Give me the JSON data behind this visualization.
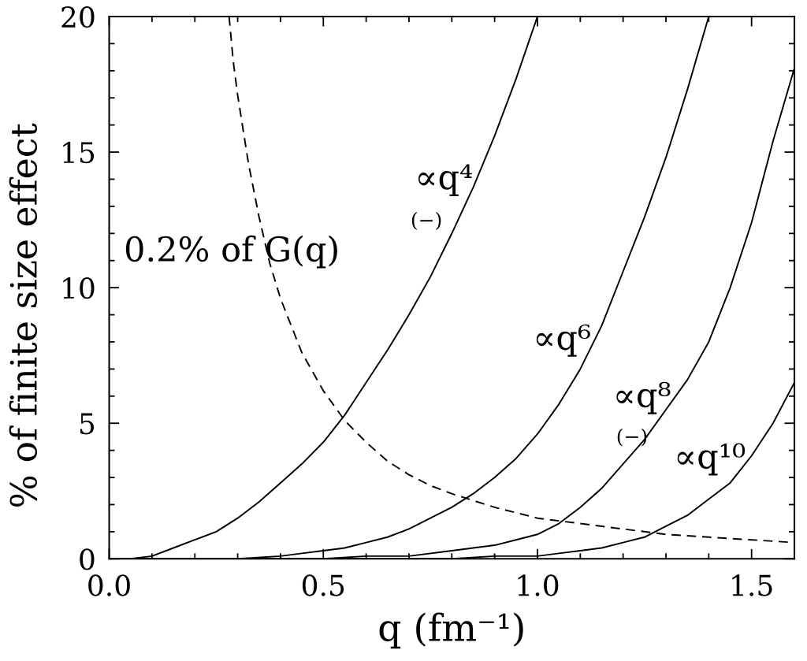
{
  "chart_data": {
    "type": "line",
    "xlabel": "q (fm⁻¹)",
    "ylabel": "% of finite size effect",
    "xlim": [
      0,
      1.6
    ],
    "ylim": [
      0,
      20
    ],
    "xticks": [
      {
        "value": 0,
        "label": "0.0"
      },
      {
        "value": 0.1,
        "label": null
      },
      {
        "value": 0.2,
        "label": null
      },
      {
        "value": 0.3,
        "label": null
      },
      {
        "value": 0.4,
        "label": null
      },
      0.5,
      {
        "value": 0.6,
        "label": null
      },
      {
        "value": 0.7,
        "label": null
      },
      {
        "value": 0.8,
        "label": null
      },
      {
        "value": 0.9,
        "label": null
      },
      {
        "value": 1.0,
        "label": "1.0"
      },
      {
        "value": 1.1,
        "label": null
      },
      {
        "value": 1.2,
        "label": null
      },
      {
        "value": 1.3,
        "label": null
      },
      {
        "value": 1.4,
        "label": null
      },
      1.5
    ],
    "yticks": [
      0,
      {
        "value": 1,
        "label": null
      },
      {
        "value": 2,
        "label": null
      },
      {
        "value": 3,
        "label": null
      },
      {
        "value": 4,
        "label": null
      },
      5,
      {
        "value": 6,
        "label": null
      },
      {
        "value": 7,
        "label": null
      },
      {
        "value": 8,
        "label": null
      },
      {
        "value": 9,
        "label": null
      },
      10,
      {
        "value": 11,
        "label": null
      },
      {
        "value": 12,
        "label": null
      },
      {
        "value": 13,
        "label": null
      },
      {
        "value": 14,
        "label": null
      },
      15,
      {
        "value": 16,
        "label": null
      },
      {
        "value": 17,
        "label": null
      },
      {
        "value": 18,
        "label": null
      },
      {
        "value": 19,
        "label": null
      },
      20
    ],
    "series": [
      {
        "name": "∝q⁴",
        "color": "#000000",
        "line_style": "solid",
        "x": [
          0,
          0.05,
          0.1,
          0.15,
          0.2,
          0.25,
          0.3,
          0.35,
          0.4,
          0.45,
          0.5,
          0.55,
          0.6,
          0.65,
          0.7,
          0.75,
          0.8,
          0.85,
          0.9,
          0.95,
          1.0
        ],
        "values": [
          0,
          0.0,
          0.1,
          0.4,
          0.7,
          1.0,
          1.5,
          2.1,
          2.8,
          3.5,
          4.3,
          5.3,
          6.5,
          7.7,
          9.0,
          10.4,
          12.0,
          13.7,
          15.6,
          17.7,
          20
        ]
      },
      {
        "name": "∝q⁶",
        "color": "#000000",
        "line_style": "solid",
        "x": [
          0,
          0.1,
          0.2,
          0.3,
          0.4,
          0.45,
          0.5,
          0.55,
          0.6,
          0.65,
          0.7,
          0.75,
          0.8,
          0.85,
          0.9,
          0.95,
          1.0,
          1.05,
          1.1,
          1.15,
          1.2,
          1.25,
          1.3,
          1.35,
          1.4
        ],
        "values": [
          0,
          0.0,
          0.0,
          0.0,
          0.1,
          0.2,
          0.3,
          0.4,
          0.6,
          0.8,
          1.1,
          1.5,
          1.9,
          2.4,
          3.0,
          3.7,
          4.6,
          5.7,
          7.0,
          8.6,
          10.6,
          12.6,
          14.8,
          17.3,
          20
        ]
      },
      {
        "name": "∝q⁸",
        "color": "#000000",
        "line_style": "solid",
        "x": [
          0,
          0.5,
          0.6,
          0.7,
          0.8,
          0.85,
          0.9,
          0.95,
          1.0,
          1.05,
          1.1,
          1.15,
          1.2,
          1.25,
          1.3,
          1.35,
          1.4,
          1.45,
          1.5,
          1.55,
          1.6
        ],
        "values": [
          0,
          0.0,
          0.1,
          0.1,
          0.3,
          0.4,
          0.5,
          0.7,
          0.9,
          1.3,
          1.9,
          2.6,
          3.5,
          4.4,
          5.5,
          6.6,
          8.0,
          10.0,
          12.4,
          15.4,
          18.1
        ]
      },
      {
        "name": "∝q¹⁰",
        "color": "#000000",
        "line_style": "solid",
        "x": [
          0,
          0.6,
          0.8,
          0.9,
          1.0,
          1.05,
          1.1,
          1.15,
          1.2,
          1.25,
          1.3,
          1.35,
          1.4,
          1.45,
          1.5,
          1.55,
          1.6
        ],
        "values": [
          0,
          0.0,
          0.0,
          0.1,
          0.1,
          0.2,
          0.3,
          0.4,
          0.6,
          0.8,
          1.2,
          1.6,
          2.2,
          2.8,
          3.8,
          5.0,
          6.5
        ]
      },
      {
        "name": "0.2% of G(q)",
        "color": "#000000",
        "line_style": "dashed",
        "x": [
          0.28,
          0.29,
          0.3,
          0.325,
          0.35,
          0.375,
          0.4,
          0.45,
          0.5,
          0.55,
          0.6,
          0.65,
          0.7,
          0.75,
          0.8,
          0.9,
          1.0,
          1.1,
          1.2,
          1.3,
          1.4,
          1.5,
          1.6
        ],
        "values": [
          20,
          18.3,
          17.1,
          14.6,
          12.6,
          10.9,
          9.6,
          7.6,
          6.2,
          5.1,
          4.3,
          3.6,
          3.1,
          2.7,
          2.4,
          1.9,
          1.5,
          1.3,
          1.1,
          0.9,
          0.8,
          0.7,
          0.6
        ]
      }
    ],
    "annotations": [
      "(−)",
      "(−)"
    ]
  }
}
